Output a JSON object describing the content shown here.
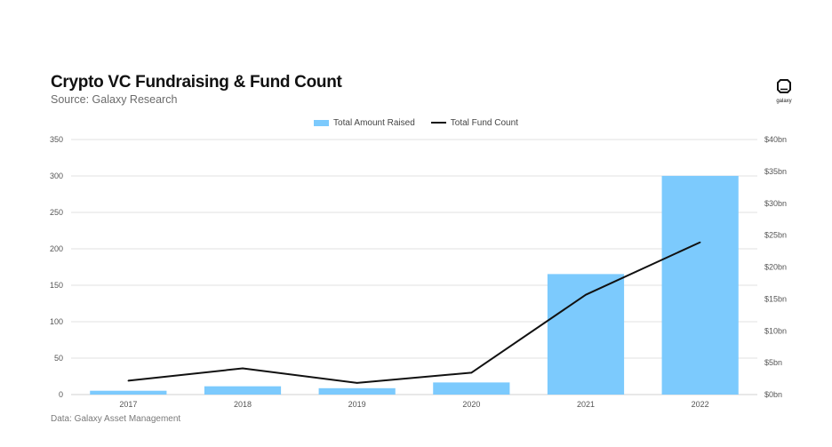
{
  "header": {
    "title": "Crypto VC Fundraising & Fund Count",
    "subtitle": "Source: Galaxy Research"
  },
  "logo": {
    "text": "galaxy",
    "icon": "galaxy-logo-icon"
  },
  "footer": {
    "source": "Data: Galaxy Asset Management"
  },
  "colors": {
    "bar": "#7ccafd",
    "line": "#111111",
    "grid": "#e2e2e2"
  },
  "chart_data": {
    "type": "bar",
    "categories": [
      "2017",
      "2018",
      "2019",
      "2020",
      "2021",
      "2022"
    ],
    "series": [
      {
        "name": "Total Amount Raised",
        "type": "bar",
        "axis": "right",
        "values": [
          0.6,
          1.3,
          1.0,
          1.9,
          18.9,
          34.3
        ]
      },
      {
        "name": "Total Fund Count",
        "type": "line",
        "axis": "left",
        "values": [
          19,
          36,
          16,
          30,
          137,
          209
        ]
      }
    ],
    "left_axis": {
      "min": 0,
      "max": 350,
      "ticks": [
        "0",
        "50",
        "100",
        "150",
        "200",
        "250",
        "300",
        "350"
      ]
    },
    "right_axis": {
      "min": 0,
      "max": 40,
      "ticks": [
        "$0bn",
        "$5bn",
        "$10bn",
        "$15bn",
        "$20bn",
        "$25bn",
        "$30bn",
        "$35bn",
        "$40bn"
      ]
    },
    "grid": true,
    "legend_position": "top-center"
  }
}
